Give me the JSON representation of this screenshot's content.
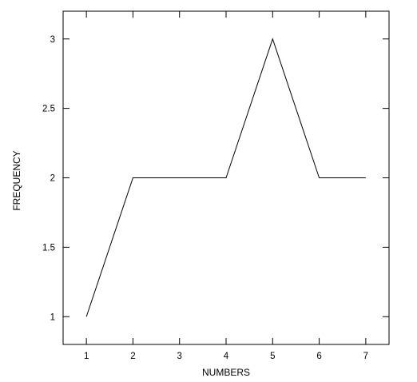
{
  "chart_data": {
    "type": "line",
    "title": "",
    "xlabel": "NUMBERS",
    "ylabel": "FREQUENCY",
    "x": [
      1,
      2,
      3,
      4,
      5,
      6,
      7
    ],
    "series": [
      {
        "values": [
          1,
          2,
          2,
          2,
          3,
          2,
          2
        ]
      }
    ],
    "xlim": [
      0.5,
      7.5
    ],
    "ylim": [
      0.8,
      3.2
    ],
    "xticks": [
      1,
      2,
      3,
      4,
      5,
      6,
      7
    ],
    "yticks": [
      1,
      1.5,
      2,
      2.5,
      3
    ],
    "xtick_labels": [
      "1",
      "2",
      "3",
      "4",
      "5",
      "6",
      "7"
    ],
    "ytick_labels": [
      "1",
      "1.5",
      "2",
      "2.5",
      "3"
    ],
    "grid": false,
    "legend": "none",
    "line_color": "#000000"
  }
}
